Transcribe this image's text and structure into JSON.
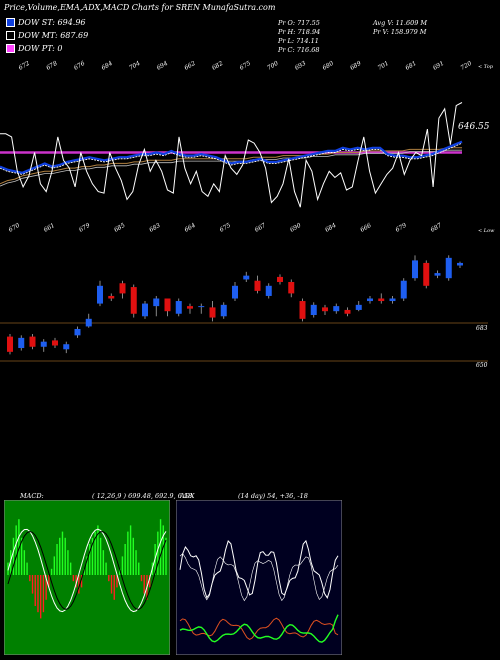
{
  "title": "Price,Volume,EMA,ADX,MACD Charts for SREN  MunafaSutra.com",
  "legend": [
    {
      "label": "DOW ST: 694.96",
      "color": "#1040e0"
    },
    {
      "label": "DOW MT: 687.69",
      "color": "#000000"
    },
    {
      "label": "DOW PT: 0",
      "color": "#ff44ff"
    }
  ],
  "ohlc": {
    "open": "Pr   O: 717.55",
    "high": "Pr   H: 718.94",
    "low": "Pr   L: 714.11",
    "close": "Pr   C: 716.68",
    "avg_volume": "Avg V: 11.609 M",
    "volume": "Pr   V: 158.979 M"
  },
  "colors": {
    "up": "#1e5ef0",
    "down": "#e01010",
    "pt": "#cc33cc",
    "ema_st": "#1040e0",
    "macd_bg": "#008000",
    "adx_bg": "#000020"
  },
  "chart_data": [
    {
      "type": "line",
      "name": "price-ema",
      "top_ticks": [
        "672",
        "678",
        "676",
        "684",
        "704",
        "694",
        "662",
        "682",
        "675",
        "700",
        "693",
        "680",
        "689",
        "701",
        "681",
        "691",
        "720"
      ],
      "bottom_ticks": [
        "670",
        "661",
        "679",
        "685",
        "683",
        "664",
        "675",
        "667",
        "690",
        "684",
        "666",
        "679",
        "687"
      ],
      "top_corner_label": "< Top",
      "bottom_corner_label": "< Low",
      "last_price_label": "646.55",
      "price_line": [
        52,
        52,
        50,
        28,
        18,
        25,
        40,
        20,
        15,
        28,
        50,
        35,
        30,
        18,
        40,
        28,
        20,
        15,
        14,
        40,
        30,
        22,
        10,
        15,
        32,
        42,
        28,
        35,
        28,
        16,
        14,
        50,
        30,
        20,
        28,
        15,
        12,
        20,
        15,
        38,
        30,
        26,
        32,
        48,
        46,
        40,
        30,
        8,
        12,
        20,
        36,
        15,
        5,
        35,
        28,
        10,
        20,
        28,
        24,
        27,
        16,
        18,
        35,
        50,
        28,
        14,
        20,
        26,
        30,
        40,
        26,
        35,
        40,
        38,
        55,
        18,
        62,
        68,
        45,
        70,
        72
      ],
      "ema_st": [
        30,
        28,
        27,
        26,
        28,
        30,
        32,
        30,
        31,
        33,
        34,
        35,
        36,
        35,
        34,
        35,
        36,
        36,
        37,
        38,
        38,
        39,
        38,
        40,
        38,
        37,
        37,
        38,
        37,
        36,
        34,
        32,
        33,
        33,
        34,
        35,
        33,
        33,
        34,
        35,
        36,
        37,
        38,
        39,
        40,
        40,
        42,
        41,
        42,
        41,
        42,
        42,
        38,
        37,
        37,
        36,
        36,
        37,
        38,
        40,
        42,
        44,
        46
      ],
      "ema_mt": [
        20,
        22,
        23,
        25,
        26,
        27,
        28,
        28,
        29,
        30,
        30,
        31,
        31,
        32,
        32,
        33,
        33,
        33,
        34,
        34,
        35,
        35,
        35,
        35,
        36,
        36,
        36,
        36,
        36,
        36,
        36,
        36,
        36,
        36,
        37,
        37,
        37,
        37,
        38,
        38,
        38,
        38,
        39,
        39,
        39,
        40,
        40,
        40,
        40,
        41,
        41,
        41,
        41,
        41,
        41,
        42,
        42,
        42,
        42,
        42,
        43,
        43,
        43
      ],
      "pt_level": 40,
      "ylim": [
        0,
        80
      ]
    },
    {
      "type": "bar",
      "name": "candles",
      "right_ticks": [
        "683",
        "650"
      ],
      "candles": [
        {
          "o": 660,
          "c": 648,
          "h": 662,
          "l": 646
        },
        {
          "o": 651,
          "c": 659,
          "h": 661,
          "l": 649
        },
        {
          "o": 660,
          "c": 652,
          "h": 662,
          "l": 650
        },
        {
          "o": 652,
          "c": 656,
          "h": 658,
          "l": 648
        },
        {
          "o": 657,
          "c": 653,
          "h": 659,
          "l": 651
        },
        {
          "o": 650,
          "c": 654,
          "h": 656,
          "l": 647
        },
        {
          "o": 661,
          "c": 666,
          "h": 668,
          "l": 659
        },
        {
          "o": 668,
          "c": 674,
          "h": 678,
          "l": 667
        },
        {
          "o": 686,
          "c": 700,
          "h": 704,
          "l": 684
        },
        {
          "o": 692,
          "c": 690,
          "h": 694,
          "l": 688
        },
        {
          "o": 702,
          "c": 694,
          "h": 704,
          "l": 690
        },
        {
          "o": 699,
          "c": 678,
          "h": 701,
          "l": 675
        },
        {
          "o": 676,
          "c": 686,
          "h": 688,
          "l": 674
        },
        {
          "o": 684,
          "c": 690,
          "h": 692,
          "l": 676
        },
        {
          "o": 690,
          "c": 680,
          "h": 690,
          "l": 676
        },
        {
          "o": 678,
          "c": 688,
          "h": 690,
          "l": 676
        },
        {
          "o": 684,
          "c": 682,
          "h": 686,
          "l": 678
        },
        {
          "o": 684,
          "c": 684,
          "h": 686,
          "l": 678
        },
        {
          "o": 683,
          "c": 675,
          "h": 688,
          "l": 672
        },
        {
          "o": 676,
          "c": 685,
          "h": 687,
          "l": 674
        },
        {
          "o": 690,
          "c": 700,
          "h": 703,
          "l": 688
        },
        {
          "o": 705,
          "c": 708,
          "h": 711,
          "l": 703
        },
        {
          "o": 704,
          "c": 696,
          "h": 708,
          "l": 694
        },
        {
          "o": 692,
          "c": 700,
          "h": 702,
          "l": 690
        },
        {
          "o": 707,
          "c": 703,
          "h": 709,
          "l": 701
        },
        {
          "o": 703,
          "c": 694,
          "h": 705,
          "l": 691
        },
        {
          "o": 688,
          "c": 674,
          "h": 690,
          "l": 672
        },
        {
          "o": 677,
          "c": 685,
          "h": 687,
          "l": 675
        },
        {
          "o": 683,
          "c": 680,
          "h": 685,
          "l": 677
        },
        {
          "o": 680,
          "c": 684,
          "h": 686,
          "l": 678
        },
        {
          "o": 681,
          "c": 678,
          "h": 683,
          "l": 676
        },
        {
          "o": 681,
          "c": 685,
          "h": 688,
          "l": 680
        },
        {
          "o": 688,
          "c": 690,
          "h": 692,
          "l": 686
        },
        {
          "o": 690,
          "c": 688,
          "h": 694,
          "l": 686
        },
        {
          "o": 688,
          "c": 690,
          "h": 692,
          "l": 686
        },
        {
          "o": 690,
          "c": 704,
          "h": 706,
          "l": 688
        },
        {
          "o": 706,
          "c": 720,
          "h": 724,
          "l": 704
        },
        {
          "o": 718,
          "c": 700,
          "h": 720,
          "l": 698
        },
        {
          "o": 708,
          "c": 710,
          "h": 712,
          "l": 706
        },
        {
          "o": 706,
          "c": 722,
          "h": 724,
          "l": 704
        },
        {
          "o": 716,
          "c": 718,
          "h": 719,
          "l": 714
        }
      ],
      "ylim": [
        640,
        740
      ]
    },
    {
      "type": "bar",
      "name": "macd",
      "label_left": "MACD:",
      "label_right": "( 12,26,9 ) 699.48,  692.9,  6.58",
      "hist": [
        0.2,
        0.4,
        0.6,
        0.8,
        0.9,
        0.6,
        0.4,
        0.2,
        -0.1,
        -0.3,
        -0.5,
        -0.6,
        -0.7,
        -0.6,
        -0.4,
        -0.2,
        0.1,
        0.3,
        0.5,
        0.6,
        0.7,
        0.6,
        0.4,
        0.2,
        -0.1,
        -0.2,
        -0.3,
        -0.2,
        0.1,
        0.3,
        0.5,
        0.6,
        0.7,
        0.8,
        0.6,
        0.4,
        0.2,
        -0.1,
        -0.3,
        -0.4,
        -0.2,
        0.1,
        0.3,
        0.5,
        0.7,
        0.8,
        0.6,
        0.4,
        0.2,
        -0.1,
        -0.3,
        -0.4,
        -0.2,
        0.2,
        0.5,
        0.7,
        0.9,
        0.8,
        0.6
      ],
      "ylim": [
        -2,
        2
      ]
    },
    {
      "type": "line",
      "name": "adx",
      "label_left": "ADX",
      "label_right": "(14  day) 54,  +36,  -18",
      "ylim": [
        0,
        100
      ]
    }
  ]
}
